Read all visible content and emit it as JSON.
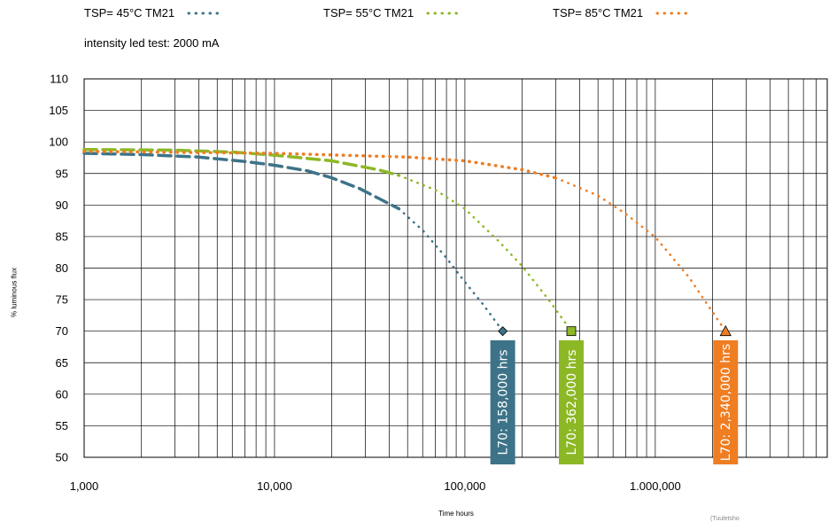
{
  "legend": {
    "items": [
      {
        "label": "TSP= 45°C TM21",
        "color": "#3d7388"
      },
      {
        "label": "TSP= 55°C TM21",
        "color": "#8db826"
      },
      {
        "label": "TSP= 85°C TM21",
        "color": "#ef7d22"
      }
    ]
  },
  "subtitle": "intensity led test: 2000 mA",
  "footnote": "(Tuuletsho",
  "chart_data": {
    "type": "line",
    "title": "",
    "xlabel": "Time hours",
    "ylabel": "% luminous flux",
    "x_scale": "log",
    "xlim": [
      1000,
      8000000
    ],
    "ylim": [
      50,
      110
    ],
    "x_ticks": [
      1000,
      10000,
      100000,
      1000000
    ],
    "x_tick_labels": [
      "1,000",
      "10,000",
      "100,000",
      "1.000,000"
    ],
    "y_ticks": [
      50,
      55,
      60,
      65,
      70,
      75,
      80,
      85,
      90,
      95,
      100,
      105,
      110
    ],
    "y_tick_labels": [
      "50",
      "55",
      "60",
      "65",
      "70",
      "75",
      "80",
      "85",
      "90",
      "95",
      "100",
      "105",
      "110"
    ],
    "grid": true,
    "legend_position": "top",
    "series": [
      {
        "name": "TSP= 45°C TM21",
        "color": "#3d7388",
        "measured": {
          "x": [
            1000,
            2000,
            4000,
            7000,
            10000,
            15000,
            20000,
            28000,
            35000,
            45000
          ],
          "y": [
            98.2,
            98.0,
            97.6,
            96.9,
            96.3,
            95.4,
            94.3,
            92.6,
            91.1,
            89.4
          ]
        },
        "projection": {
          "x": [
            45000,
            60000,
            80000,
            100000,
            125000,
            158000
          ],
          "y": [
            89.4,
            86.0,
            81.6,
            77.8,
            74.2,
            70.0
          ]
        },
        "l70_x": 158000,
        "l70_label": "L70: 158,000 hrs",
        "marker": "diamond"
      },
      {
        "name": "TSP= 55°C TM21",
        "color": "#8db826",
        "measured": {
          "x": [
            1000,
            3000,
            6000,
            10000,
            20000,
            35000,
            45000
          ],
          "y": [
            98.8,
            98.7,
            98.4,
            97.9,
            97.0,
            95.6,
            94.7
          ]
        },
        "projection": {
          "x": [
            45000,
            70000,
            100000,
            150000,
            200000,
            280000,
            362000
          ],
          "y": [
            94.7,
            92.4,
            89.4,
            84.3,
            80.3,
            74.7,
            70.0
          ]
        },
        "l70_x": 362000,
        "l70_label": "L70: 362,000 hrs",
        "marker": "square"
      },
      {
        "name": "TSP= 85°C TM21",
        "color": "#ef7d22",
        "measured": {
          "x": [
            1000,
            10000,
            50000,
            100000,
            200000,
            300000
          ],
          "y": [
            98.5,
            98.2,
            97.6,
            97.0,
            95.6,
            94.3
          ]
        },
        "projection": {
          "x": [
            300000,
            500000,
            700000,
            1000000,
            1500000,
            2000000,
            2340000
          ],
          "y": [
            94.3,
            91.5,
            88.6,
            84.9,
            78.6,
            73.0,
            70.0
          ]
        },
        "l70_x": 2340000,
        "l70_label": "L70: 2,340,000 hrs",
        "marker": "triangle"
      }
    ]
  }
}
